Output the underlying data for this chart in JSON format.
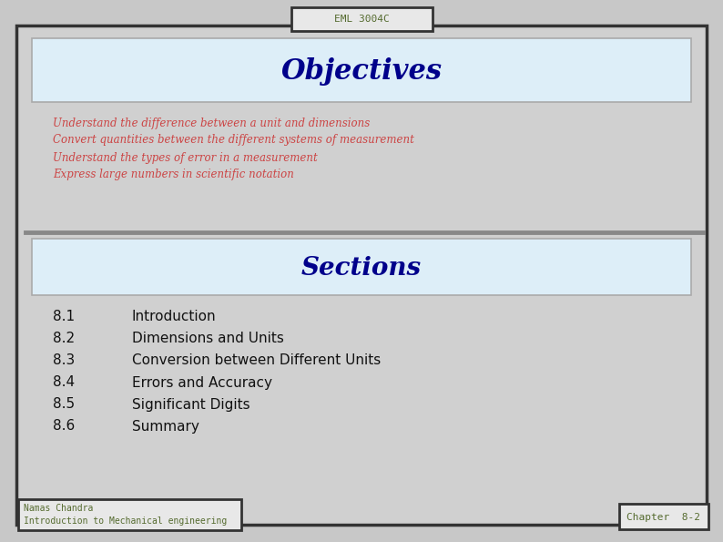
{
  "title_tab": "EML 3004C",
  "bg_color": "#c8c8c8",
  "slide_bg": "#d0d0d0",
  "objectives_title": "Objectives",
  "objectives_box_color": "#ddeef8",
  "objectives_border_color": "#aaaaaa",
  "objectives_title_color": "#00008B",
  "bullet_color": "#cc4444",
  "bullets": [
    "Understand the difference between a unit and dimensions",
    "Convert quantities between the different systems of measurement",
    "Understand the types of error in a measurement",
    "Express large numbers in scientific notation"
  ],
  "sections_title": "Sections",
  "sections_box_color": "#ddeef8",
  "sections_title_color": "#00008B",
  "section_numbers": [
    "8.1",
    "8.2",
    "8.3",
    "8.4",
    "8.5",
    "8.6"
  ],
  "section_names": [
    "Introduction",
    "Dimensions and Units",
    "Conversion between Different Units",
    "Errors and Accuracy",
    "Significant Digits",
    "Summary"
  ],
  "section_color": "#111111",
  "footer_left_line1": "Namas Chandra",
  "footer_left_line2": "Introduction to Mechanical engineering",
  "footer_right": "Chapter  8-2",
  "footer_text_color": "#556b2f",
  "tab_text_color": "#556b2f",
  "tab_bg": "#e8e8e8",
  "outer_border_color": "#333333",
  "divider_color": "#888888"
}
